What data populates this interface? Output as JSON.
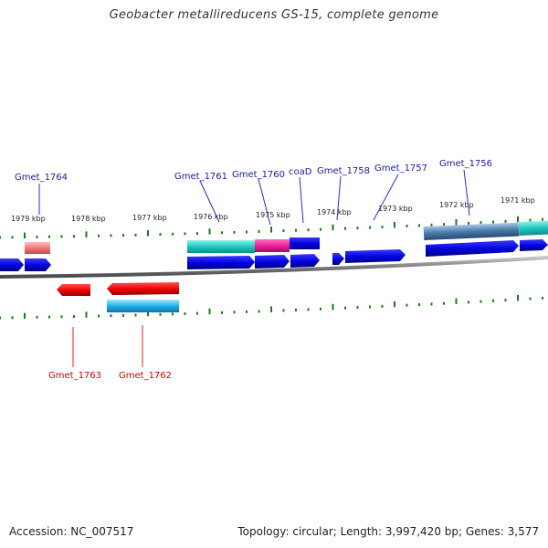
{
  "title": "Geobacter metallireducens GS-15, complete genome",
  "footer": {
    "accession": "Accession: NC_007517",
    "topology": "Topology: circular; Length: 3,997,420 bp; Genes: 3,577"
  },
  "colors": {
    "background": "#ffffff",
    "backbone": "#7a7a7a",
    "tick": "#1e7a1e",
    "gene_fwd": "#0000dd",
    "gene_rev": "#ee0000",
    "label_top": "#1a1aa0",
    "label_bottom": "#cc0000",
    "feature_cyan": "#1fc7c0",
    "feature_magenta": "#f0209a",
    "feature_pink": "#f07a7a",
    "feature_steel": "#4a7aa8",
    "feature_sky": "#20b0e8"
  },
  "kbp_labels": [
    "1979 kbp",
    "1978 kbp",
    "1977 kbp",
    "1976 kbp",
    "1975 kbp",
    "1974 kbp",
    "1973 kbp",
    "1972 kbp",
    "1971 kbp"
  ],
  "genes_top": [
    {
      "name": "Gmet_1764"
    },
    {
      "name": "Gmet_1761"
    },
    {
      "name": "Gmet_1760"
    },
    {
      "name": "coaD"
    },
    {
      "name": "Gmet_1758"
    },
    {
      "name": "Gmet_1757"
    },
    {
      "name": "Gmet_1756"
    }
  ],
  "genes_bottom": [
    {
      "name": "Gmet_1763"
    },
    {
      "name": "Gmet_1762"
    }
  ]
}
